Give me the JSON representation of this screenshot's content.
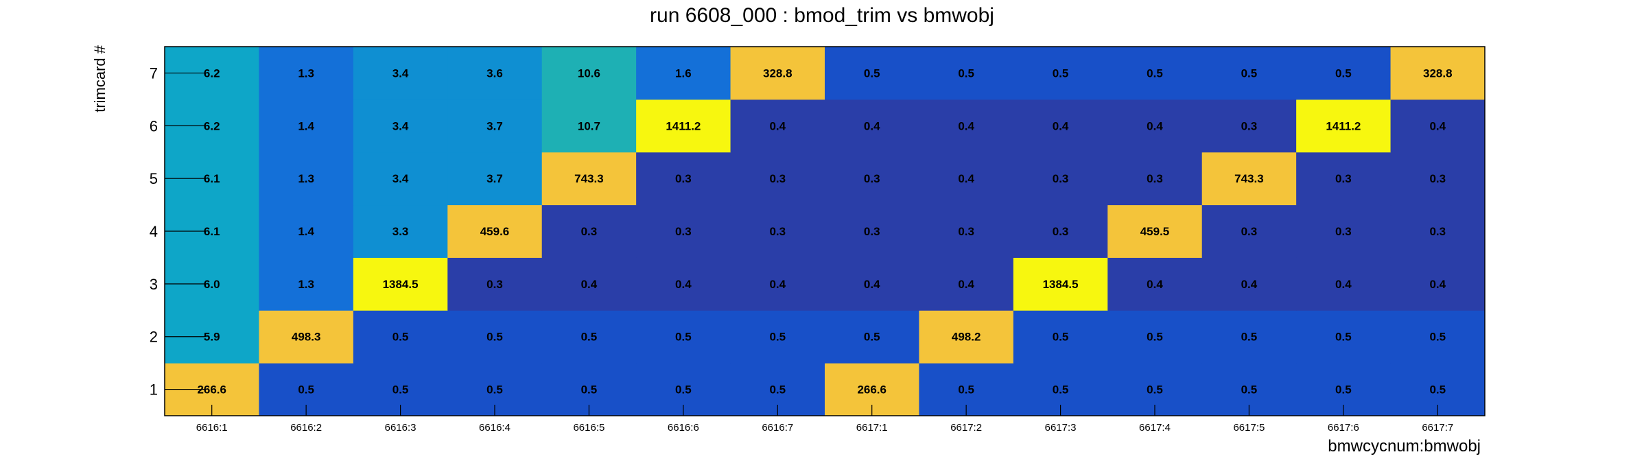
{
  "chart_data": {
    "type": "heatmap",
    "title": "run 6608_000 : bmod_trim vs bmwobj",
    "xlabel": "bmwcycnum:bmwobj",
    "ylabel": "trimcard #",
    "x_categories": [
      "6616:1",
      "6616:2",
      "6616:3",
      "6616:4",
      "6616:5",
      "6616:6",
      "6616:7",
      "6617:1",
      "6617:2",
      "6617:3",
      "6617:4",
      "6617:5",
      "6617:6",
      "6617:7"
    ],
    "y_categories": [
      "1",
      "2",
      "3",
      "4",
      "5",
      "6",
      "7"
    ],
    "values": [
      [
        266.6,
        0.5,
        0.5,
        0.5,
        0.5,
        0.5,
        0.5,
        266.6,
        0.5,
        0.5,
        0.5,
        0.5,
        0.5,
        0.5
      ],
      [
        5.9,
        498.3,
        0.5,
        0.5,
        0.5,
        0.5,
        0.5,
        0.5,
        498.2,
        0.5,
        0.5,
        0.5,
        0.5,
        0.5
      ],
      [
        6.0,
        1.3,
        1384.5,
        0.3,
        0.4,
        0.4,
        0.4,
        0.4,
        0.4,
        1384.5,
        0.4,
        0.4,
        0.4,
        0.4
      ],
      [
        6.1,
        1.4,
        3.3,
        459.6,
        0.3,
        0.3,
        0.3,
        0.3,
        0.3,
        0.3,
        459.5,
        0.3,
        0.3,
        0.3
      ],
      [
        6.1,
        1.3,
        3.4,
        3.7,
        743.3,
        0.3,
        0.3,
        0.3,
        0.4,
        0.3,
        0.3,
        743.3,
        0.3,
        0.3
      ],
      [
        6.2,
        1.4,
        3.4,
        3.7,
        10.7,
        1411.2,
        0.4,
        0.4,
        0.4,
        0.4,
        0.4,
        0.3,
        1411.2,
        0.4
      ],
      [
        6.2,
        1.3,
        3.4,
        3.6,
        10.6,
        1.6,
        328.8,
        0.5,
        0.5,
        0.5,
        0.5,
        0.5,
        0.5,
        328.8
      ]
    ],
    "colors": {
      "low": "#2a3ea8",
      "v0_5": "#1850c8",
      "v1": "#1470d8",
      "v3": "#0f8fd2",
      "v6": "#0ea6c8",
      "v10": "#1eb0b4",
      "high": "#f4c43a",
      "max": "#f7f70f"
    }
  }
}
